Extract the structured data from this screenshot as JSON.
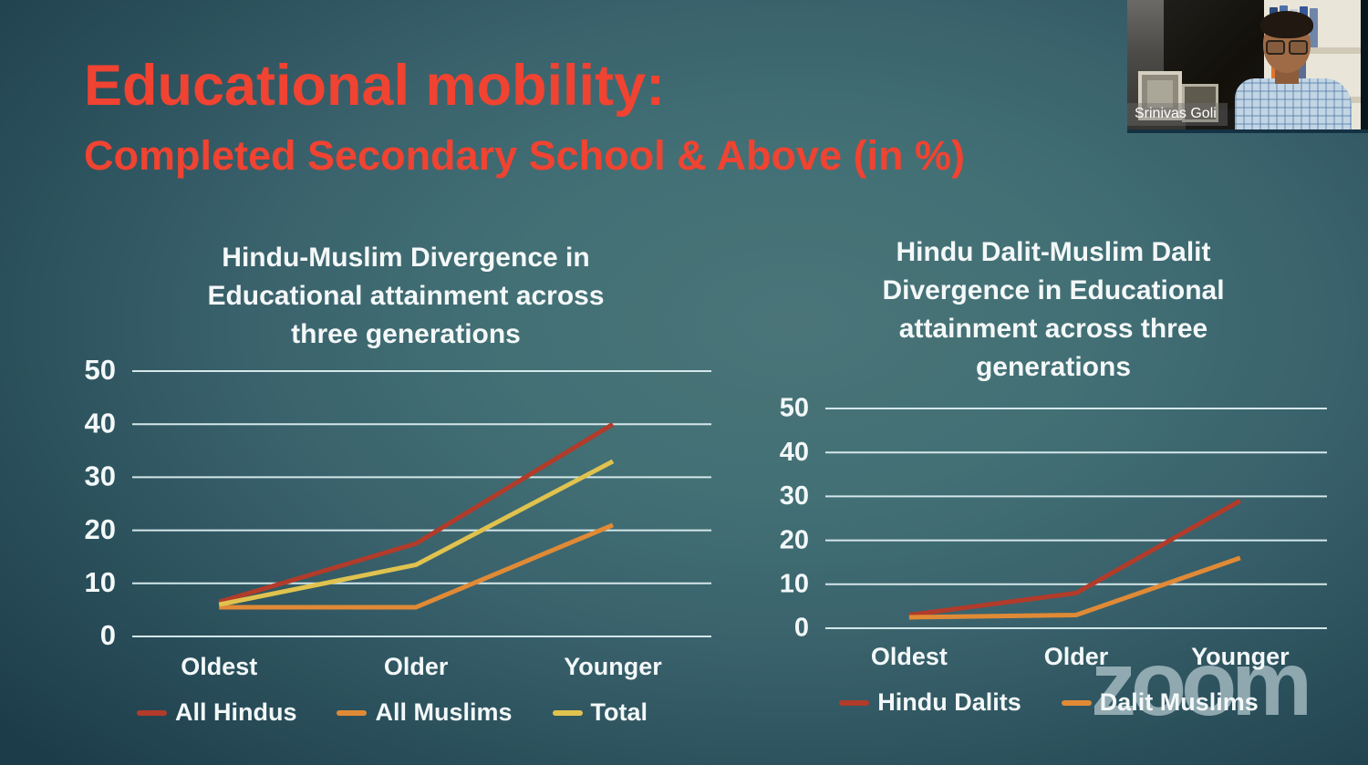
{
  "slide": {
    "title_line1": "Educational mobility:",
    "title_line2": "Completed Secondary School & Above (in %)"
  },
  "colors": {
    "title_accent": "#f04331",
    "gridline": "#d4e7ea",
    "tick_text": "#f3f8f9",
    "background_center": "#4a7478",
    "background_edge": "#1d3c4a"
  },
  "chart_data": [
    {
      "type": "line",
      "title": "Hindu-Muslim Divergence in\nEducational attainment across\nthree generations",
      "categories": [
        "Oldest",
        "Older",
        "Younger"
      ],
      "series": [
        {
          "name": "All Hindus",
          "color": "#b23b2a",
          "values": [
            6.5,
            17.5,
            40
          ]
        },
        {
          "name": "All Muslims",
          "color": "#e08a36",
          "values": [
            5.5,
            5.5,
            21
          ]
        },
        {
          "name": "Total",
          "color": "#e0c24e",
          "values": [
            6,
            13.5,
            33
          ]
        }
      ],
      "ylim": [
        0,
        50
      ],
      "yticks": [
        0,
        10,
        20,
        30,
        40,
        50
      ],
      "grid": true,
      "legend_position": "bottom"
    },
    {
      "type": "line",
      "title": "Hindu Dalit-Muslim Dalit\nDivergence in Educational\nattainment across three\ngenerations",
      "categories": [
        "Oldest",
        "Older",
        "Younger"
      ],
      "series": [
        {
          "name": "Hindu Dalits",
          "color": "#b23b2a",
          "values": [
            3,
            8,
            29
          ]
        },
        {
          "name": "Dalit Muslims",
          "color": "#e08a36",
          "values": [
            2.5,
            3,
            16
          ]
        }
      ],
      "ylim": [
        0,
        50
      ],
      "yticks": [
        0,
        10,
        20,
        30,
        40,
        50
      ],
      "grid": true,
      "legend_position": "bottom"
    }
  ],
  "webcam": {
    "name_label": "Srinivas Goli"
  },
  "watermark": {
    "text": "zoom"
  }
}
